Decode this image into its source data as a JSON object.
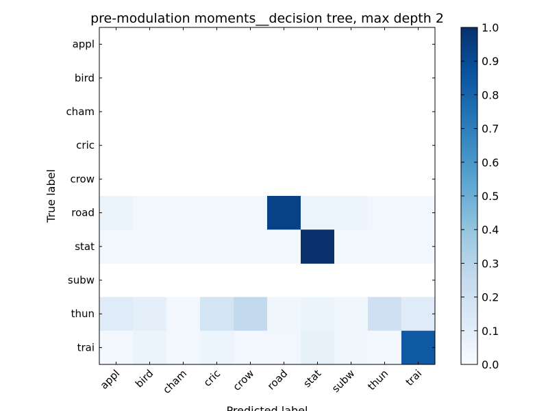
{
  "chart_data": {
    "type": "heatmap",
    "title": "pre-modulation moments__decision tree, max depth 2",
    "xlabel": "Predicted label",
    "ylabel": "True label",
    "x_categories": [
      "appl",
      "bird",
      "cham",
      "cric",
      "crow",
      "road",
      "stat",
      "subw",
      "thun",
      "trai"
    ],
    "y_categories": [
      "appl",
      "bird",
      "cham",
      "cric",
      "crow",
      "road",
      "stat",
      "subw",
      "thun",
      "trai"
    ],
    "values": [
      [
        null,
        null,
        null,
        null,
        null,
        null,
        null,
        null,
        null,
        null
      ],
      [
        null,
        null,
        null,
        null,
        null,
        null,
        null,
        null,
        null,
        null
      ],
      [
        null,
        null,
        null,
        null,
        null,
        null,
        null,
        null,
        null,
        null
      ],
      [
        null,
        null,
        null,
        null,
        null,
        null,
        null,
        null,
        null,
        null
      ],
      [
        null,
        null,
        null,
        null,
        null,
        null,
        null,
        null,
        null,
        null
      ],
      [
        0.06,
        0.03,
        0.03,
        0.03,
        0.03,
        0.93,
        0.05,
        0.05,
        0.03,
        0.03
      ],
      [
        0.03,
        0.03,
        0.03,
        0.03,
        0.03,
        0.03,
        1.0,
        0.03,
        0.03,
        0.03
      ],
      [
        null,
        null,
        null,
        null,
        null,
        null,
        null,
        null,
        null,
        null
      ],
      [
        0.12,
        0.09,
        0.03,
        0.18,
        0.26,
        0.04,
        0.06,
        0.04,
        0.21,
        0.12
      ],
      [
        0.02,
        0.06,
        0.03,
        0.05,
        0.03,
        0.03,
        0.08,
        0.04,
        0.02,
        0.84
      ]
    ],
    "colorbar": {
      "min": 0.0,
      "max": 1.0,
      "ticks": [
        "0.0",
        "0.1",
        "0.2",
        "0.3",
        "0.4",
        "0.5",
        "0.6",
        "0.7",
        "0.8",
        "0.9",
        "1.0"
      ],
      "colormap": "Blues"
    }
  }
}
